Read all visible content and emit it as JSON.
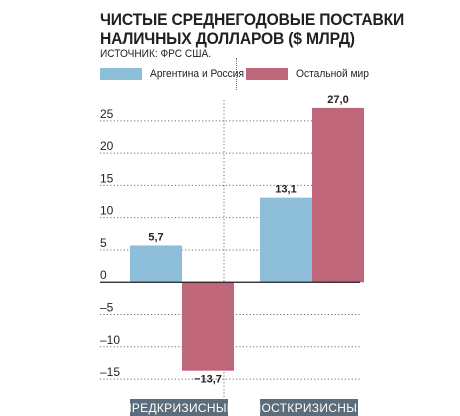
{
  "title": {
    "line1": "ЧИСТЫЕ СРЕДНЕГОДОВЫЕ ПОСТАВКИ",
    "line2": "НАЛИЧНЫХ ДОЛЛАРОВ ($ МЛРД)"
  },
  "source": "ИСТОЧНИК: ФРС США.",
  "colors": {
    "series1": "#8ebfda",
    "series2": "#c0667b",
    "category_band": "#5b6d7a",
    "text": "#231f20"
  },
  "legend": [
    {
      "label": "Аргентина и Россия"
    },
    {
      "label": "Остальной мир"
    }
  ],
  "chart_data": {
    "type": "bar",
    "categories": [
      "ПРЕДКРИЗИСНЫЕ",
      "ПОСТКРИЗИСНЫЕ"
    ],
    "series": [
      {
        "name": "Аргентина и Россия",
        "values": [
          5.7,
          13.1
        ],
        "labels": [
          "5,7",
          "13,1"
        ]
      },
      {
        "name": "Остальной мир",
        "values": [
          -13.7,
          27.0
        ],
        "labels": [
          "−13,7",
          "27,0"
        ]
      }
    ],
    "yticks": [
      25,
      20,
      15,
      10,
      5,
      0,
      -5,
      -10,
      -15
    ],
    "ytick_labels": [
      "25",
      "20",
      "15",
      "10",
      "5",
      "0",
      "–5",
      "–10",
      "–15"
    ],
    "ylim": [
      -17,
      29
    ],
    "grid": true,
    "legend_position": "top"
  }
}
